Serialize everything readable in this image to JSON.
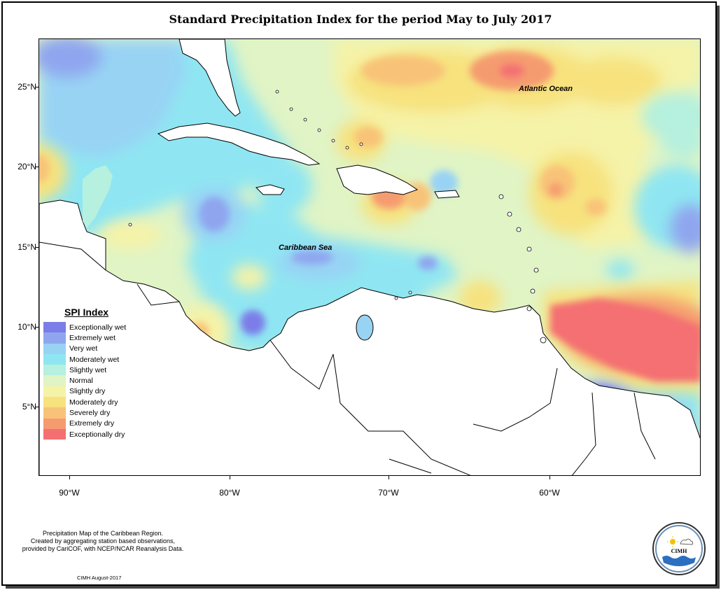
{
  "title": "Standard Precipitation Index for the period May to July 2017",
  "map": {
    "lat_labels": [
      "25°N",
      "20°N",
      "15°N",
      "10°N",
      "5°N"
    ],
    "lon_labels": [
      "90°W",
      "80°W",
      "70°W",
      "60°W"
    ],
    "ocean_labels": {
      "atlantic": "Atlantic Ocean",
      "caribbean": "Caribbean Sea"
    }
  },
  "legend": {
    "title": "SPI Index",
    "items": [
      {
        "label": "Exceptionally wet",
        "color": "#7b7de8"
      },
      {
        "label": "Extremely wet",
        "color": "#8fa6ef"
      },
      {
        "label": "Very wet",
        "color": "#98d3f4"
      },
      {
        "label": "Moderately wet",
        "color": "#8fe6f2"
      },
      {
        "label": "Slightly wet",
        "color": "#b6f0de"
      },
      {
        "label": "Normal",
        "color": "#e0f4c5"
      },
      {
        "label": "Slightly dry",
        "color": "#f5f3a8"
      },
      {
        "label": "Moderately dry",
        "color": "#f7e27e"
      },
      {
        "label": "Severely dry",
        "color": "#f8c378"
      },
      {
        "label": "Extremely dry",
        "color": "#f59b6f"
      },
      {
        "label": "Exceptionally dry",
        "color": "#f46f72"
      }
    ]
  },
  "footnote": {
    "line1": "Precipitation Map of the Caribbean Region.",
    "line2": "Created by aggregating station based observations,",
    "line3": "provided by CariCOF, with NCEP/NCAR Reanalysis Data."
  },
  "credit": "CIMH August-2017",
  "logo": {
    "text": "CIMH"
  }
}
